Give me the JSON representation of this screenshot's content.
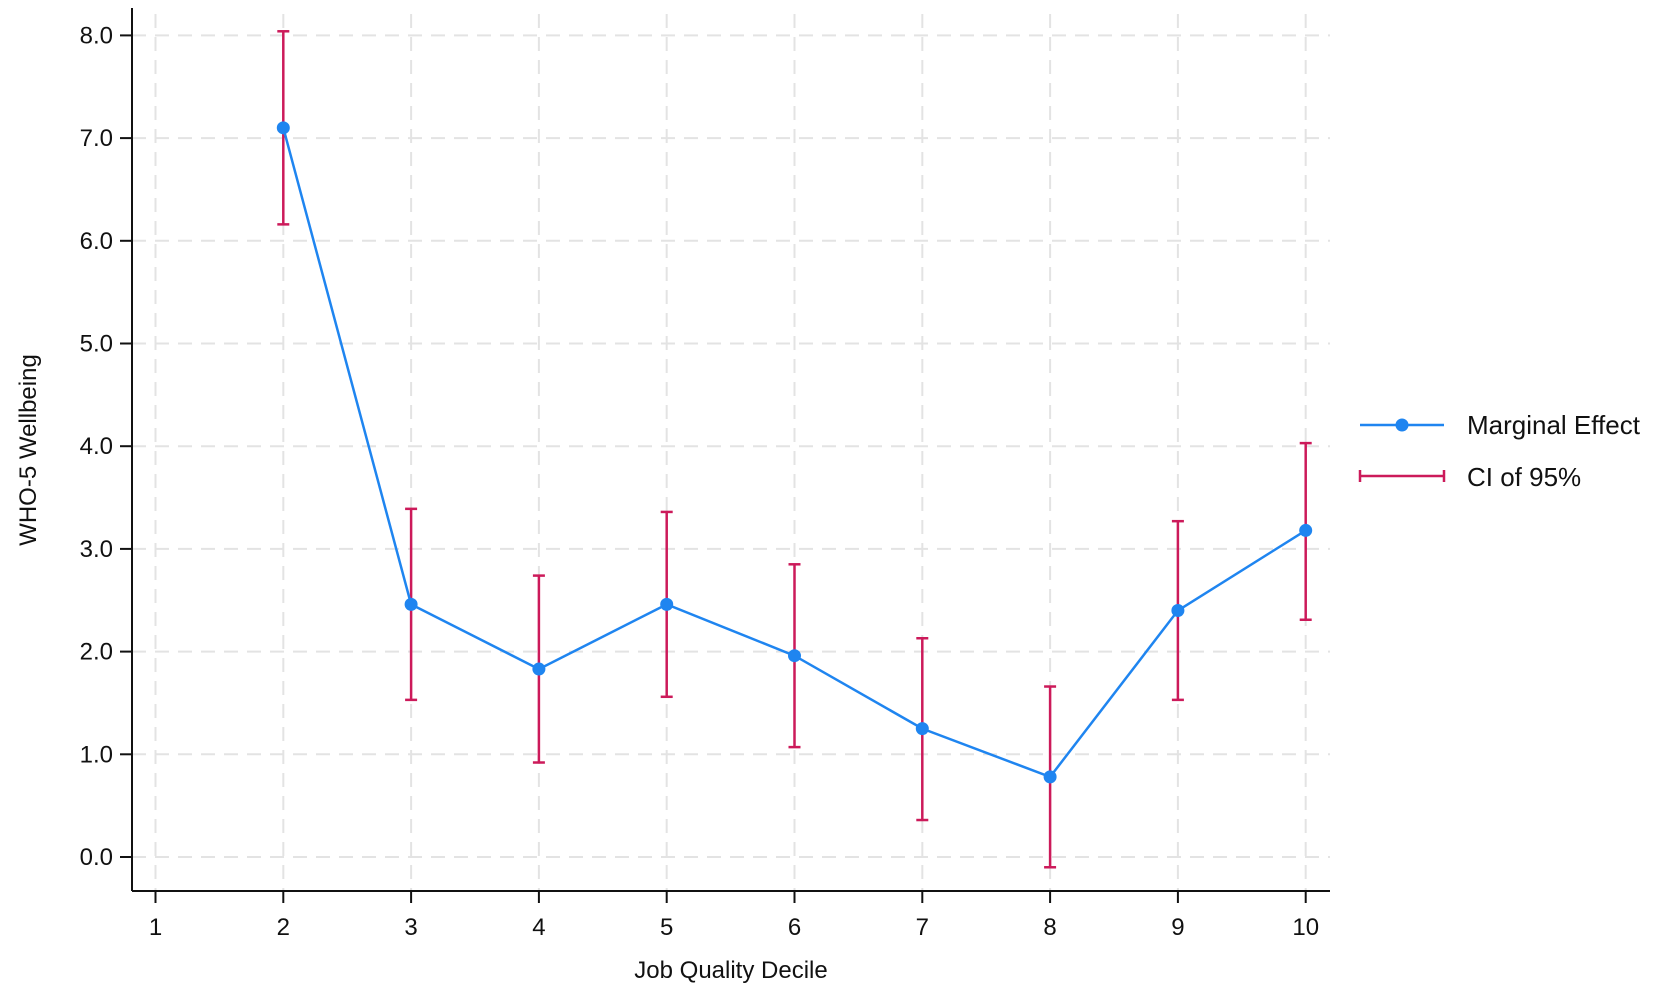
{
  "chart_data": {
    "type": "line",
    "title": "",
    "xlabel": "Job Quality Decile",
    "ylabel": "WHO-5 Wellbeing",
    "x_ticks": [
      "1",
      "2",
      "3",
      "4",
      "5",
      "6",
      "7",
      "8",
      "9",
      "10"
    ],
    "y_ticks": [
      "0.0",
      "1.0",
      "2.0",
      "3.0",
      "4.0",
      "5.0",
      "6.0",
      "7.0",
      "8.0"
    ],
    "xlim": [
      0.8,
      10.2
    ],
    "ylim": [
      -0.33,
      8.3
    ],
    "grid": true,
    "legend_position": "right",
    "series": [
      {
        "name": "Marginal Effect",
        "color": "#1f85f0",
        "x": [
          2,
          3,
          4,
          5,
          6,
          7,
          8,
          9,
          10
        ],
        "y": [
          7.1,
          2.46,
          1.83,
          2.46,
          1.96,
          1.25,
          0.78,
          2.4,
          3.18
        ]
      },
      {
        "name": "CI of 95%",
        "type": "errorbar",
        "color": "#cc1a5a",
        "x": [
          2,
          3,
          4,
          5,
          6,
          7,
          8,
          9,
          10
        ],
        "lower": [
          6.16,
          1.53,
          0.92,
          1.56,
          1.07,
          0.36,
          -0.1,
          1.53,
          2.31
        ],
        "upper": [
          8.04,
          3.39,
          2.74,
          3.36,
          2.85,
          2.13,
          1.66,
          3.27,
          4.03
        ]
      }
    ]
  }
}
